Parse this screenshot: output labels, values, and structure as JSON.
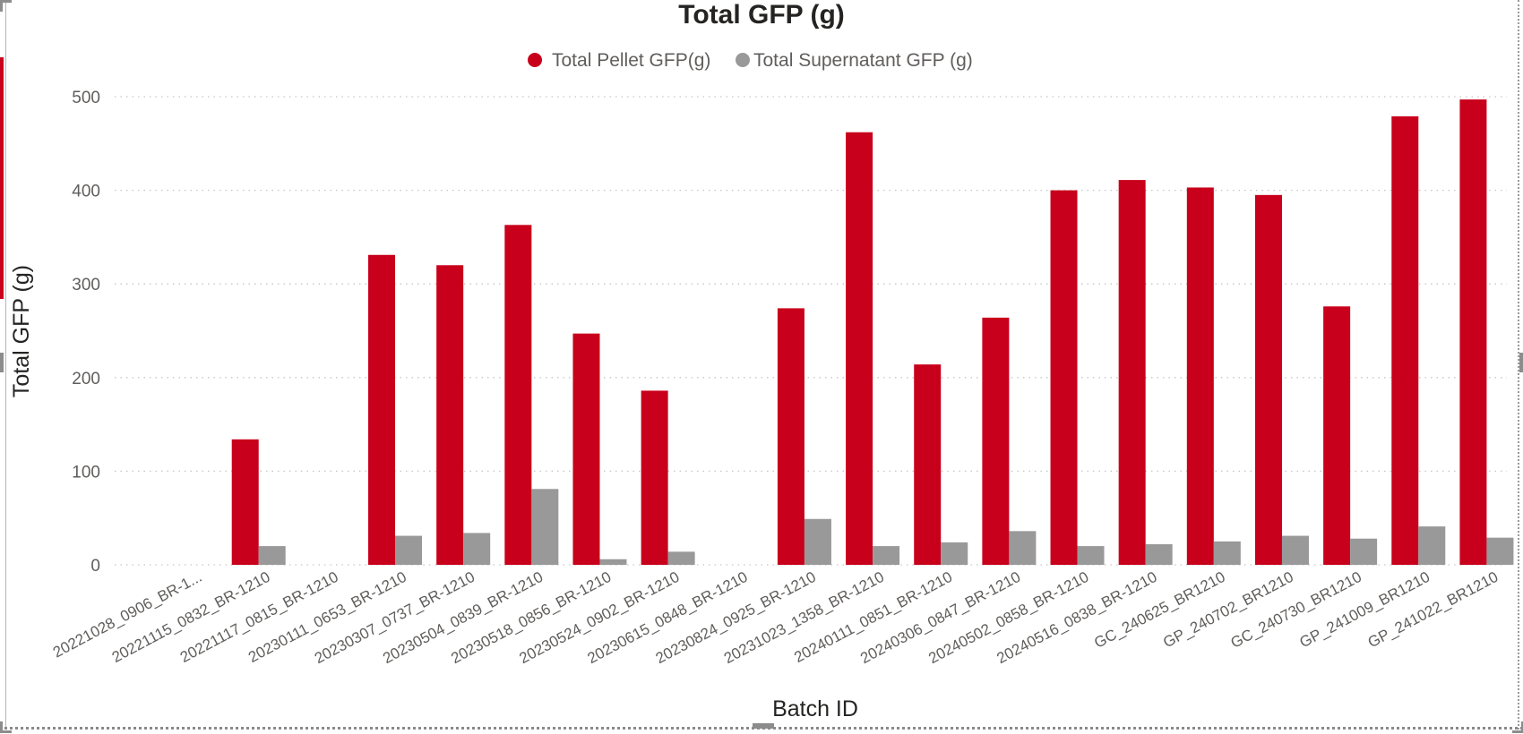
{
  "chart_data": {
    "type": "bar",
    "title": "Total GFP (g)",
    "xlabel": "Batch ID",
    "ylabel": "Total GFP (g)",
    "ylim": [
      0,
      500
    ],
    "yticks": [
      0,
      100,
      200,
      300,
      400,
      500
    ],
    "grid": true,
    "legend_position": "top-center",
    "categories": [
      "20221028_0906_BR-1...",
      "20221115_0832_BR-1210",
      "20221117_0815_BR-1210",
      "20230111_0653_BR-1210",
      "20230307_0737_BR-1210",
      "20230504_0839_BR-1210",
      "20230518_0856_BR-1210",
      "20230524_0902_BR-1210",
      "20230615_0848_BR-1210",
      "20230824_0925_BR-1210",
      "20231023_1358_BR-1210",
      "20240111_0851_BR-1210",
      "20240306_0847_BR-1210",
      "20240502_0858_BR-1210",
      "20240516_0838_BR-1210",
      "GC_240625_BR1210",
      "GP_240702_BR1210",
      "GC_240730_BR1210",
      "GP_241009_BR1210",
      "GP_241022_BR1210"
    ],
    "series": [
      {
        "name": "Total Pellet GFP(g)",
        "color": "#c8001b",
        "values": [
          null,
          134,
          null,
          331,
          320,
          363,
          247,
          186,
          null,
          274,
          462,
          214,
          264,
          400,
          411,
          403,
          395,
          276,
          479,
          497
        ]
      },
      {
        "name": "Total Supernatant GFP (g)",
        "color": "#999999",
        "values": [
          null,
          20,
          null,
          31,
          34,
          81,
          6,
          14,
          null,
          49,
          20,
          24,
          36,
          20,
          22,
          25,
          31,
          28,
          41,
          29
        ]
      }
    ]
  }
}
